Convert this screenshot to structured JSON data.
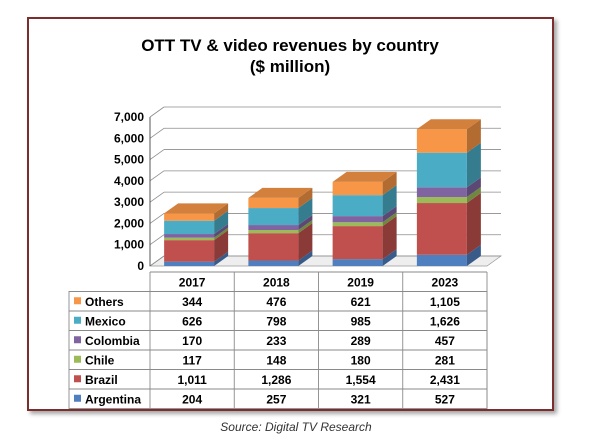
{
  "chart_data": {
    "type": "bar",
    "stacked": true,
    "three_d": true,
    "title": "OTT TV & video revenues by country",
    "subtitle": "($ million)",
    "categories": [
      "2017",
      "2018",
      "2019",
      "2023"
    ],
    "ylim": [
      0,
      7000
    ],
    "yticks": [
      0,
      1000,
      2000,
      3000,
      4000,
      5000,
      6000,
      7000
    ],
    "ytick_labels": [
      "0",
      "1,000",
      "2,000",
      "3,000",
      "4,000",
      "5,000",
      "6,000",
      "7,000"
    ],
    "grid": true,
    "legend_placement": "data-table-left",
    "series": [
      {
        "name": "Argentina",
        "values": [
          204,
          257,
          321,
          527
        ],
        "labels": [
          "204",
          "257",
          "321",
          "527"
        ],
        "color": "#4f7fbf"
      },
      {
        "name": "Brazil",
        "values": [
          1011,
          1286,
          1554,
          2431
        ],
        "labels": [
          "1,011",
          "1,286",
          "1,554",
          "2,431"
        ],
        "color": "#c0504d"
      },
      {
        "name": "Chile",
        "values": [
          117,
          148,
          180,
          281
        ],
        "labels": [
          "117",
          "148",
          "180",
          "281"
        ],
        "color": "#9bbb59"
      },
      {
        "name": "Colombia",
        "values": [
          170,
          233,
          289,
          457
        ],
        "labels": [
          "170",
          "233",
          "289",
          "457"
        ],
        "color": "#8064a2"
      },
      {
        "name": "Mexico",
        "values": [
          626,
          798,
          985,
          1626
        ],
        "labels": [
          "626",
          "798",
          "985",
          "1,626"
        ],
        "color": "#4bacc6"
      },
      {
        "name": "Others",
        "values": [
          344,
          476,
          621,
          1105
        ],
        "labels": [
          "344",
          "476",
          "621",
          "1,105"
        ],
        "color": "#f79646"
      }
    ]
  },
  "source": "Source: Digital TV Research"
}
